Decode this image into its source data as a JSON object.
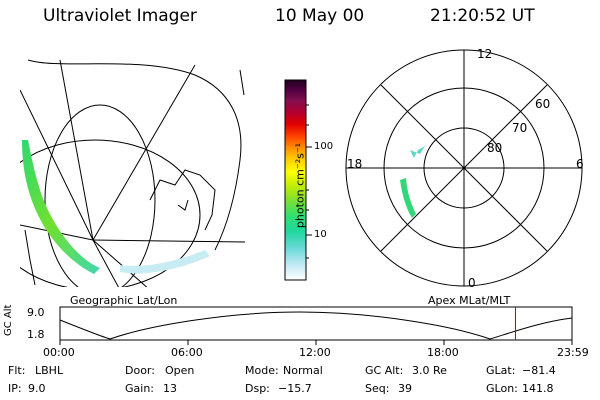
{
  "header": {
    "instrument": "Ultraviolet Imager",
    "date": "10 May 00",
    "time": "21:20:52 UT"
  },
  "panels": {
    "left_label": "Geographic Lat/Lon",
    "right_label": "Apex MLat/MLT"
  },
  "colorbar": {
    "unit_label": "photon cm⁻²s⁻¹",
    "ticks": [
      {
        "label": "100",
        "value": 100
      },
      {
        "label": "10",
        "value": 10
      }
    ],
    "colors": [
      "#ffffff",
      "#bfe8f3",
      "#69d8d8",
      "#20d8a0",
      "#30e070",
      "#80e030",
      "#c8f000",
      "#ffff00",
      "#ffd000",
      "#ff9000",
      "#ff4000",
      "#e00000",
      "#b00030",
      "#801050",
      "#500040",
      "#200020"
    ]
  },
  "polar": {
    "mlt_labels": [
      {
        "label": "12",
        "angle_deg": 0
      },
      {
        "label": "6",
        "angle_deg": 90
      },
      {
        "label": "0",
        "angle_deg": 180
      },
      {
        "label": "18",
        "angle_deg": 270
      }
    ],
    "lat_labels": [
      "60",
      "70",
      "80"
    ]
  },
  "altitude_strip": {
    "axis_label": "GC Alt",
    "y_ticks": [
      "9.0",
      "1.8"
    ],
    "x_ticks": [
      "00:00",
      "06:00",
      "12:00",
      "18:00",
      "23:59"
    ],
    "current_time_hours": 21.35,
    "marker_color": "#c00000"
  },
  "info": {
    "flt_label": "Flt:",
    "flt_value": "LBHL",
    "ip_label": "IP:",
    "ip_value": "9.0",
    "door_label": "Door:",
    "door_value": "Open",
    "gain_label": "Gain:",
    "gain_value": "13",
    "mode_label": "Mode:",
    "mode_value": "Normal",
    "dsp_label": "Dsp:",
    "dsp_value": "−15.7",
    "gcalt_label": "GC Alt:",
    "gcalt_value": "3.0 Re",
    "seq_label": "Seq:",
    "seq_value": "39",
    "glat_label": "GLat:",
    "glat_value": "−81.4",
    "glon_label": "GLon:",
    "glon_value": "141.8"
  }
}
